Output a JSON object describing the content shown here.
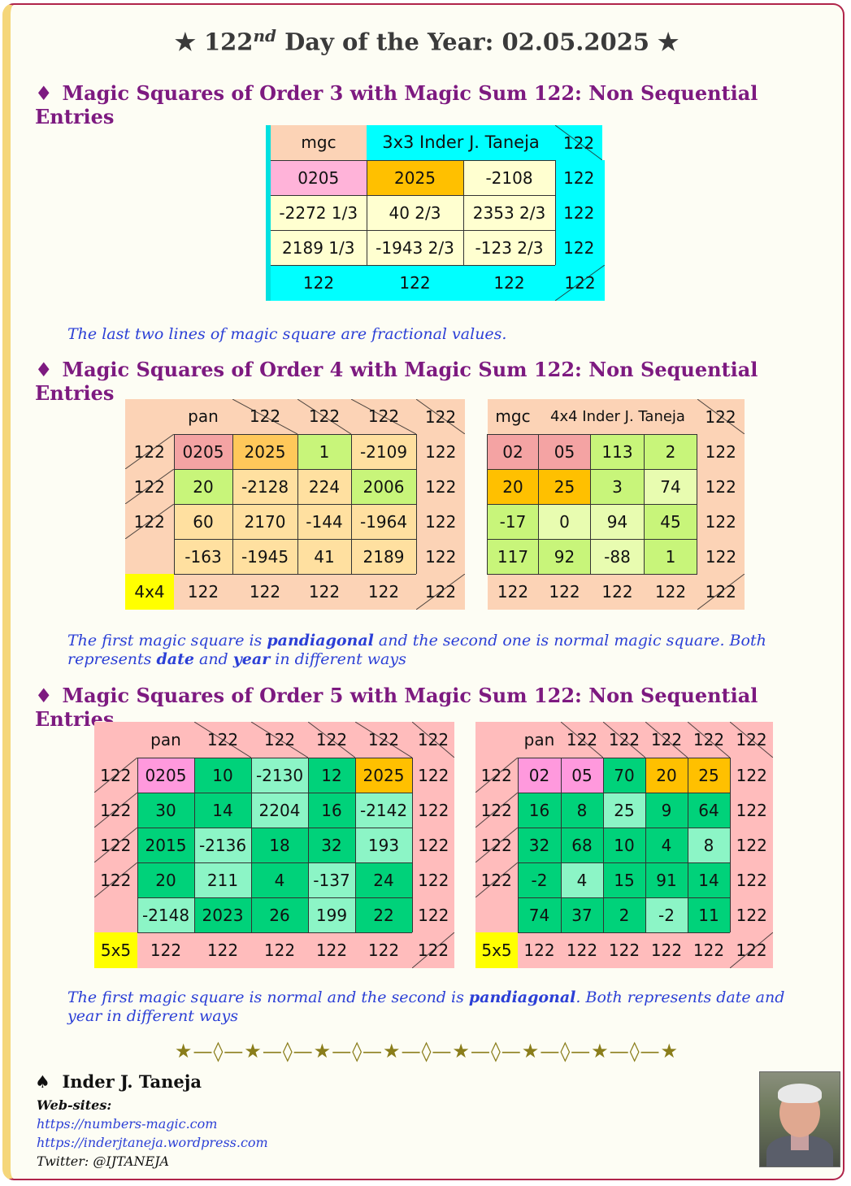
{
  "title": {
    "pre": "★ 122",
    "sup": "nd",
    "post": " Day of the Year: 02.05.2025 ★"
  },
  "sections": [
    {
      "heading": "Magic Squares of Order 3 with Magic Sum 122: Non Sequential Entries",
      "note": "The last two lines of magic square are fractional values."
    },
    {
      "heading": "Magic Squares of Order 4 with Magic Sum 122: Non Sequential Entries",
      "note_parts": [
        "The first magic square is ",
        "pandiagonal",
        " and the second one is normal magic square. Both represents ",
        "date",
        " and ",
        "year",
        " in different ways"
      ]
    },
    {
      "heading": "Magic Squares of Order 5 with Magic Sum 122: Non Sequential Entries",
      "note_parts": [
        "The first magic square is normal and the second is ",
        "pandiagonal",
        ". Both represents date and year in different ways"
      ]
    }
  ],
  "squares": {
    "sq3": {
      "corner": "mgc",
      "header": "3x3  Inder J. Taneja",
      "sum": "122",
      "rows": [
        [
          "0205",
          "2025",
          "-2108"
        ],
        [
          "-2272 1/3",
          "40 2/3",
          "2353 2/3"
        ],
        [
          "2189 1/3",
          "-1943 2/3",
          "-123 2/3"
        ]
      ]
    },
    "sq4a": {
      "corner_label": "pan",
      "bottom_label": "4x4",
      "sum": "122",
      "rows": [
        [
          "0205",
          "2025",
          "1",
          "-2109"
        ],
        [
          "20",
          "-2128",
          "224",
          "2006"
        ],
        [
          "60",
          "2170",
          "-144",
          "-1964"
        ],
        [
          "-163",
          "-1945",
          "41",
          "2189"
        ]
      ]
    },
    "sq4b": {
      "corner": "mgc",
      "header": "4x4  Inder J. Taneja",
      "sum": "122",
      "rows": [
        [
          "02",
          "05",
          "113",
          "2"
        ],
        [
          "20",
          "25",
          "3",
          "74"
        ],
        [
          "-17",
          "0",
          "94",
          "45"
        ],
        [
          "117",
          "92",
          "-88",
          "1"
        ]
      ]
    },
    "sq5a": {
      "corner_label": "pan",
      "bottom_label": "5x5",
      "sum": "122",
      "rows": [
        [
          "0205",
          "10",
          "-2130",
          "12",
          "2025"
        ],
        [
          "30",
          "14",
          "2204",
          "16",
          "-2142"
        ],
        [
          "2015",
          "-2136",
          "18",
          "32",
          "193"
        ],
        [
          "20",
          "211",
          "4",
          "-137",
          "24"
        ],
        [
          "-2148",
          "2023",
          "26",
          "199",
          "22"
        ]
      ]
    },
    "sq5b": {
      "corner_label": "pan",
      "bottom_label": "5x5",
      "sum": "122",
      "rows": [
        [
          "02",
          "05",
          "70",
          "20",
          "25"
        ],
        [
          "16",
          "8",
          "25",
          "9",
          "64"
        ],
        [
          "32",
          "68",
          "10",
          "4",
          "8"
        ],
        [
          "-2",
          "4",
          "15",
          "91",
          "14"
        ],
        [
          "74",
          "37",
          "2",
          "-2",
          "11"
        ]
      ]
    }
  },
  "colors": {
    "peach": "#fcd3b6",
    "cyan": "#00ffff",
    "pink": "#ffb3d9",
    "orange": "#ffc000",
    "pale_yellow": "#ffffd0",
    "salmon": "#f4a3a3",
    "light_orange": "#ffe0a0",
    "lime": "#c8f57a",
    "light_lime": "#e8fcb0",
    "yellow": "#ffff00",
    "pink_border": "#ffbcbc",
    "green": "#00d27a",
    "mint": "#8cf5c6",
    "purple": "#7d1a80",
    "blue": "#2b3fd6"
  },
  "divider": "★—◊—★—◊—★—◊—★—◊—★—◊—★—◊—★—◊—★",
  "author": {
    "symbol": "♠",
    "name": "Inder J. Taneja",
    "websites_label": "Web-sites:",
    "site1": "https://numbers-magic.com",
    "site2": "https://inderjtaneja.wordpress.com",
    "twitter": "Twitter: @IJTANEJA"
  }
}
